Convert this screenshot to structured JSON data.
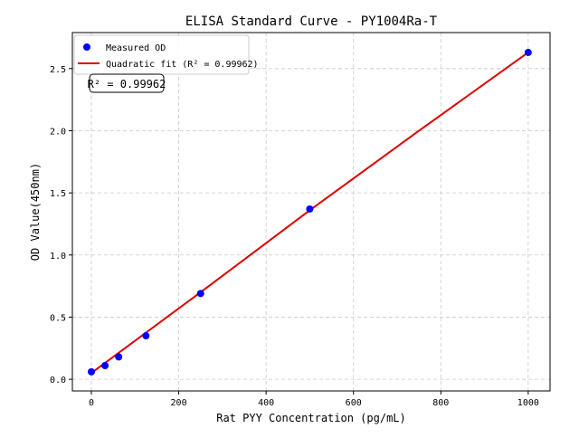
{
  "chart_data": {
    "type": "scatter",
    "title": "ELISA Standard Curve - PY1004Ra-T",
    "xlabel": "Rat PYY Concentration (pg/mL)",
    "ylabel": "OD Value(450nm)",
    "xlim": [
      -43.5,
      1050
    ],
    "ylim": [
      -0.094,
      2.79
    ],
    "xticks": [
      0,
      200,
      400,
      600,
      800,
      1000
    ],
    "yticks": [
      0.0,
      0.5,
      1.0,
      1.5,
      2.0,
      2.5
    ],
    "xtick_labels": [
      "0",
      "200",
      "400",
      "600",
      "800",
      "1000"
    ],
    "ytick_labels": [
      "0.0",
      "0.5",
      "1.0",
      "1.5",
      "2.0",
      "2.5"
    ],
    "grid": true,
    "legend_position": "top-left",
    "series": [
      {
        "name": "Measured OD",
        "kind": "scatter",
        "color": "#0000ff",
        "x": [
          0,
          31.25,
          62.5,
          125,
          250,
          500,
          1000
        ],
        "y": [
          0.06,
          0.11,
          0.18,
          0.35,
          0.69,
          1.37,
          2.63
        ]
      },
      {
        "name": "Quadratic fit (R² = 0.99962)",
        "kind": "line",
        "color": "#dd0000",
        "x": [
          0,
          250,
          500,
          750,
          1000
        ],
        "y": [
          0.05,
          0.7,
          1.36,
          2.0,
          2.63
        ]
      }
    ],
    "annotation": "R² = 0.99962"
  }
}
